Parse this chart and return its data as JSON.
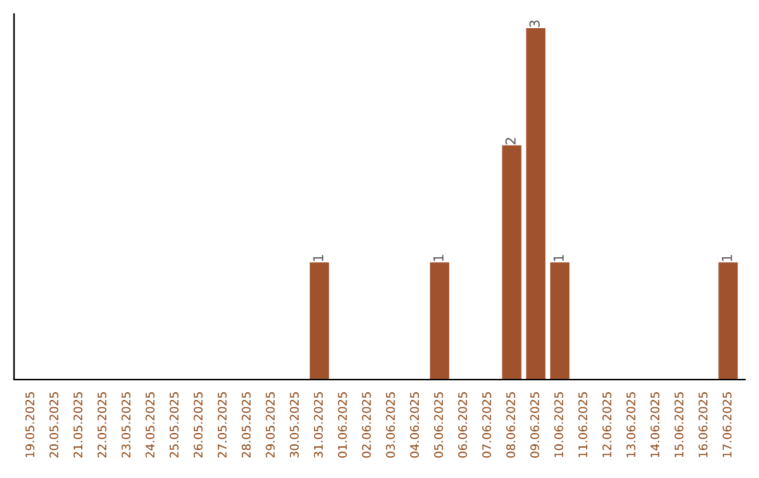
{
  "chart_data": {
    "type": "bar",
    "categories": [
      "19.05.2025",
      "20.05.2025",
      "21.05.2025",
      "22.05.2025",
      "23.05.2025",
      "24.05.2025",
      "25.05.2025",
      "26.05.2025",
      "27.05.2025",
      "28.05.2025",
      "29.05.2025",
      "30.05.2025",
      "31.05.2025",
      "01.06.2025",
      "02.06.2025",
      "03.06.2025",
      "04.06.2025",
      "05.06.2025",
      "06.06.2025",
      "07.06.2025",
      "08.06.2025",
      "09.06.2025",
      "10.06.2025",
      "11.06.2025",
      "12.06.2025",
      "13.06.2025",
      "14.06.2025",
      "15.06.2025",
      "16.06.2025",
      "17.06.2025"
    ],
    "values": [
      null,
      null,
      null,
      null,
      null,
      null,
      null,
      null,
      null,
      null,
      null,
      null,
      1,
      null,
      null,
      null,
      null,
      1,
      null,
      null,
      2,
      3,
      1,
      null,
      null,
      null,
      null,
      null,
      null,
      1
    ],
    "data_labels": true,
    "color": "#a0522d",
    "grid": false,
    "legend": false
  }
}
